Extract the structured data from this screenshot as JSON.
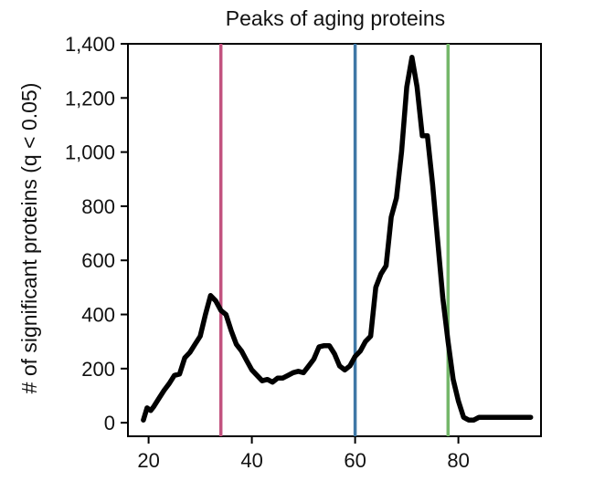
{
  "chart_data": {
    "type": "line",
    "title": "Peaks of aging proteins",
    "xlabel": "",
    "ylabel": "# of significant proteins (q < 0.05)",
    "xlim": [
      16,
      96
    ],
    "ylim": [
      -50,
      1400
    ],
    "x_ticks": [
      20,
      40,
      60,
      80
    ],
    "x_tick_labels": [
      "20",
      "40",
      "60",
      "80"
    ],
    "y_ticks": [
      0,
      200,
      400,
      600,
      800,
      1000,
      1200,
      1400
    ],
    "y_tick_labels": [
      "0",
      "200",
      "400",
      "600",
      "800",
      "1,000",
      "1,200",
      "1,400"
    ],
    "grid": false,
    "vertical_lines": [
      {
        "x": 34,
        "color": "#c2527f"
      },
      {
        "x": 60,
        "color": "#3f78a6"
      },
      {
        "x": 78,
        "color": "#74b76a"
      }
    ],
    "series": [
      {
        "color": "#000000",
        "x": [
          19,
          19.7,
          20.4,
          21,
          22,
          23,
          24,
          25,
          26,
          27,
          28,
          29,
          30,
          31,
          32,
          33,
          34,
          35,
          36,
          37,
          38,
          39,
          40,
          41,
          42,
          43,
          44,
          45,
          46,
          47,
          48,
          49,
          50,
          51,
          52,
          53,
          54,
          55,
          56,
          57,
          58,
          59,
          60,
          61,
          62,
          63,
          64,
          65,
          66,
          67,
          68,
          69,
          70,
          71,
          72,
          73,
          74,
          75,
          76,
          77,
          78,
          79,
          80,
          81,
          82,
          83,
          84,
          85,
          86,
          87,
          88,
          89,
          90,
          91,
          92,
          93,
          94
        ],
        "y": [
          10,
          55,
          45,
          60,
          90,
          120,
          145,
          175,
          180,
          240,
          260,
          290,
          320,
          400,
          470,
          450,
          415,
          400,
          340,
          290,
          265,
          230,
          195,
          175,
          155,
          160,
          150,
          165,
          165,
          175,
          185,
          190,
          185,
          210,
          235,
          280,
          285,
          285,
          255,
          210,
          195,
          210,
          245,
          265,
          300,
          320,
          500,
          550,
          580,
          760,
          830,
          1000,
          1240,
          1350,
          1240,
          1060,
          1060,
          880,
          670,
          460,
          300,
          160,
          80,
          20,
          10,
          10,
          20,
          20,
          20,
          20,
          20,
          20,
          20,
          20,
          20,
          20,
          20
        ]
      }
    ]
  }
}
